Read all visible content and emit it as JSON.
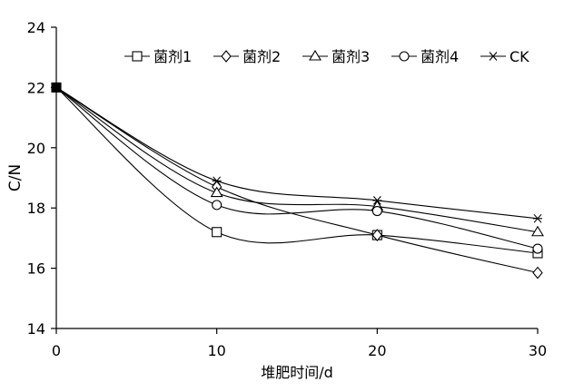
{
  "chart_data": {
    "type": "line",
    "title": "",
    "xlabel": "堆肥时间/d",
    "ylabel": "C/N",
    "x": [
      0,
      10,
      20,
      30
    ],
    "xlim": [
      0,
      30
    ],
    "ylim": [
      14,
      24
    ],
    "x_ticks": [
      "0",
      "10",
      "20",
      "30"
    ],
    "y_ticks": [
      "14",
      "16",
      "18",
      "20",
      "22",
      "24"
    ],
    "legend_position": "top-right",
    "grid": false,
    "smooth": true,
    "series": [
      {
        "name": "菌剂1",
        "marker": "square",
        "values": [
          22.0,
          17.2,
          17.1,
          16.5
        ]
      },
      {
        "name": "菌剂2",
        "marker": "diamond",
        "values": [
          22.0,
          18.7,
          17.1,
          15.85
        ]
      },
      {
        "name": "菌剂3",
        "marker": "triangle",
        "values": [
          22.0,
          18.5,
          18.05,
          17.2
        ]
      },
      {
        "name": "菌剂4",
        "marker": "circle",
        "values": [
          22.0,
          18.1,
          17.9,
          16.65
        ]
      },
      {
        "name": "CK",
        "marker": "star",
        "values": [
          22.0,
          18.9,
          18.25,
          17.65
        ]
      }
    ]
  }
}
